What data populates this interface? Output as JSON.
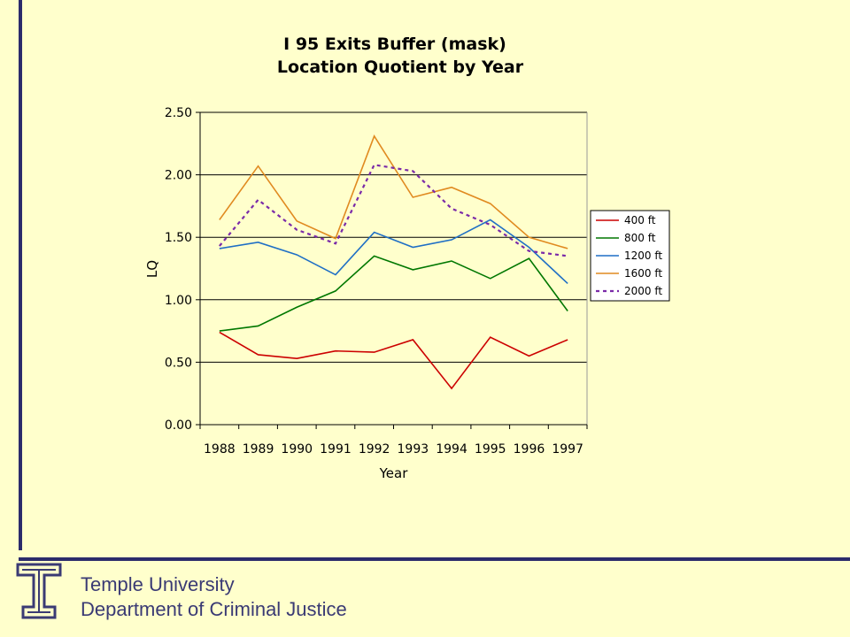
{
  "footer": {
    "line1": "Temple University",
    "line2": "Department of Criminal Justice"
  },
  "colors": {
    "background": "#ffffcc",
    "frame": "#2b2b6b",
    "footer_text": "#3a3a74"
  },
  "chart_data": {
    "type": "line",
    "title": [
      "I 95 Exits Buffer (mask)",
      "Location Quotient by Year"
    ],
    "xlabel": "Year",
    "ylabel": "LQ",
    "x": [
      "1988",
      "1989",
      "1990",
      "1991",
      "1992",
      "1993",
      "1994",
      "1995",
      "1996",
      "1997"
    ],
    "ylim": [
      0,
      2.5
    ],
    "yticks": [
      "0.00",
      "0.50",
      "1.00",
      "1.50",
      "2.00",
      "2.50"
    ],
    "grid": true,
    "legend_position": "right",
    "series": [
      {
        "name": "400 ft",
        "color": "#cc0000",
        "dash": false,
        "values": [
          0.74,
          0.56,
          0.53,
          0.59,
          0.58,
          0.68,
          0.29,
          0.7,
          0.55,
          0.68
        ]
      },
      {
        "name": "800 ft",
        "color": "#007700",
        "dash": false,
        "values": [
          0.75,
          0.79,
          0.94,
          1.07,
          1.35,
          1.24,
          1.31,
          1.17,
          1.33,
          0.91
        ]
      },
      {
        "name": "1200 ft",
        "color": "#1f6fc5",
        "dash": false,
        "values": [
          1.41,
          1.46,
          1.36,
          1.2,
          1.54,
          1.42,
          1.48,
          1.64,
          1.42,
          1.13
        ]
      },
      {
        "name": "1600 ft",
        "color": "#e08a20",
        "dash": false,
        "values": [
          1.64,
          2.07,
          1.63,
          1.49,
          2.31,
          1.82,
          1.9,
          1.77,
          1.5,
          1.41
        ]
      },
      {
        "name": "2000 ft",
        "color": "#7a2aa8",
        "dash": true,
        "values": [
          1.43,
          1.8,
          1.56,
          1.45,
          2.08,
          2.03,
          1.73,
          1.6,
          1.39,
          1.35
        ]
      }
    ]
  }
}
